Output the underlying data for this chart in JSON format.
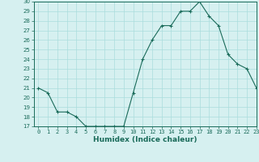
{
  "x": [
    0,
    1,
    2,
    3,
    4,
    5,
    6,
    7,
    8,
    9,
    10,
    11,
    12,
    13,
    14,
    15,
    16,
    17,
    18,
    19,
    20,
    21,
    22,
    23
  ],
  "y": [
    21,
    20.5,
    18.5,
    18.5,
    18,
    17,
    17,
    17,
    17,
    17,
    20.5,
    24,
    26,
    27.5,
    27.5,
    29,
    29,
    30,
    28.5,
    27.5,
    24.5,
    23.5,
    23,
    21
  ],
  "line_color": "#1a6b5a",
  "marker": "+",
  "bg_color": "#d6f0f0",
  "grid_color": "#aadddd",
  "xlabel": "Humidex (Indice chaleur)",
  "ylim": [
    17,
    30
  ],
  "xlim": [
    -0.5,
    23
  ],
  "yticks": [
    17,
    18,
    19,
    20,
    21,
    22,
    23,
    24,
    25,
    26,
    27,
    28,
    29,
    30
  ],
  "xticks": [
    0,
    1,
    2,
    3,
    4,
    5,
    6,
    7,
    8,
    9,
    10,
    11,
    12,
    13,
    14,
    15,
    16,
    17,
    18,
    19,
    20,
    21,
    22,
    23
  ],
  "tick_fontsize": 5.0,
  "xlabel_fontsize": 6.5
}
